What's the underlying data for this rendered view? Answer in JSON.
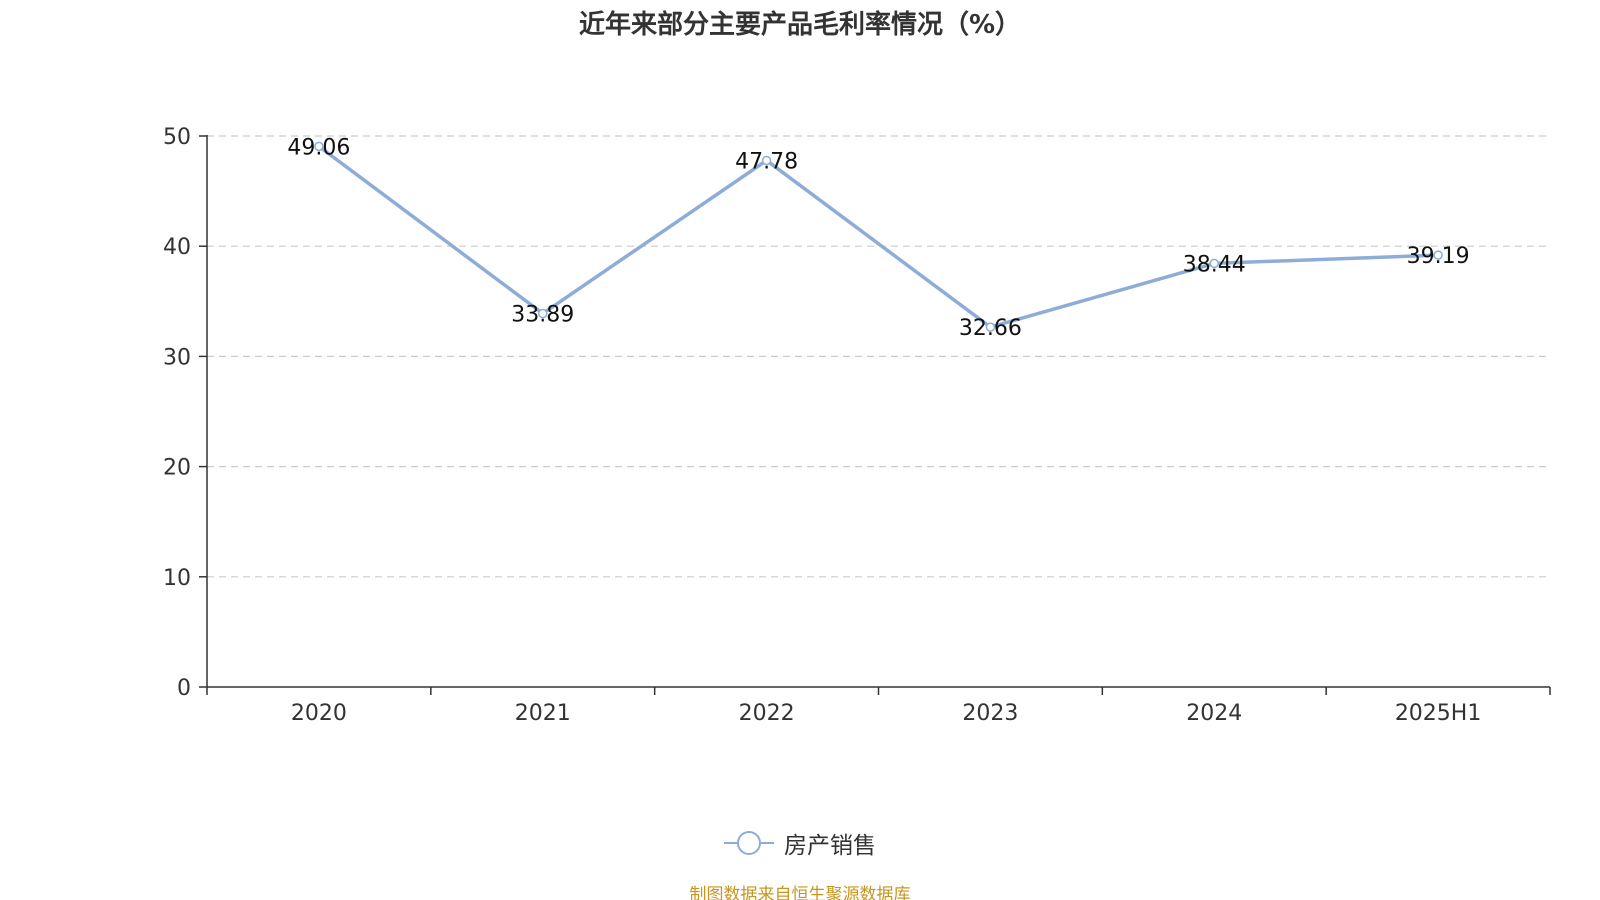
{
  "colors": {
    "series": "#8eacd8",
    "source_note": "#c8961e",
    "grid": "#cccccc",
    "axis": "#333333"
  },
  "chart_data": {
    "type": "line",
    "title": "近年来部分主要产品毛利率情况（%）",
    "categories": [
      "2020",
      "2021",
      "2022",
      "2023",
      "2024",
      "2025H1"
    ],
    "series": [
      {
        "name": "房产销售",
        "values": [
          49.06,
          33.89,
          47.78,
          32.66,
          38.44,
          39.19
        ],
        "labels": [
          "49.06",
          "33.89",
          "47.78",
          "32.66",
          "38.44",
          "39.19"
        ]
      }
    ],
    "ylim": [
      0,
      50
    ],
    "yticks": [
      "0",
      "10",
      "20",
      "30",
      "40",
      "50"
    ],
    "grid": true,
    "legend_position": "bottom-center"
  },
  "source_note": "制图数据来自恒生聚源数据库"
}
